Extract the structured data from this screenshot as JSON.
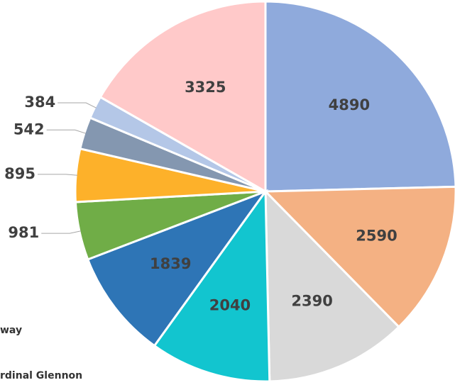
{
  "chart_data": {
    "type": "pie",
    "values": [
      4890,
      2590,
      2390,
      2040,
      1839,
      981,
      895,
      542,
      384,
      3325
    ],
    "colors": [
      "#8faadc",
      "#f4b183",
      "#d9d9d9",
      "#12c5cf",
      "#2e75b6",
      "#70ad47",
      "#fdb12a",
      "#8497b0",
      "#b4c7e7",
      "#ffc9c9"
    ],
    "legend": [
      "way",
      "rdinal Glennon"
    ]
  }
}
